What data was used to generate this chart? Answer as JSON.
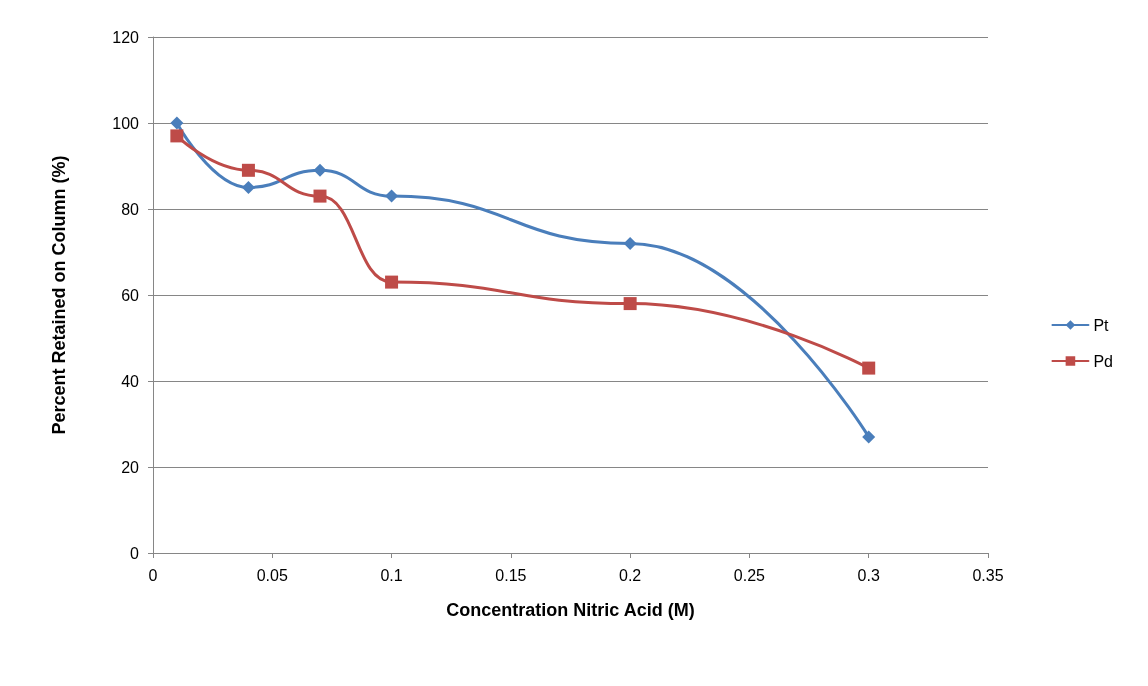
{
  "chart_data": {
    "type": "line",
    "xlabel": "Concentration Nitric Acid (M)",
    "ylabel": "Percent Retained on Column (%)",
    "x": [
      0.01,
      0.04,
      0.07,
      0.1,
      0.2,
      0.3
    ],
    "series": [
      {
        "name": "Pt",
        "color": "#4a7ebb",
        "marker": "diamond",
        "values": [
          100,
          85,
          89,
          83,
          72,
          27
        ]
      },
      {
        "name": "Pd",
        "color": "#be4b48",
        "marker": "square",
        "values": [
          97,
          89,
          83,
          63,
          58,
          43
        ]
      }
    ],
    "xlim": [
      0,
      0.35
    ],
    "xticks": [
      0,
      0.05,
      0.1,
      0.15,
      0.2,
      0.25,
      0.3,
      0.35
    ],
    "ylim": [
      0,
      120
    ],
    "yticks": [
      0,
      20,
      40,
      60,
      80,
      100,
      120
    ],
    "grid": "y",
    "legend": "right",
    "line_style": "solid"
  }
}
